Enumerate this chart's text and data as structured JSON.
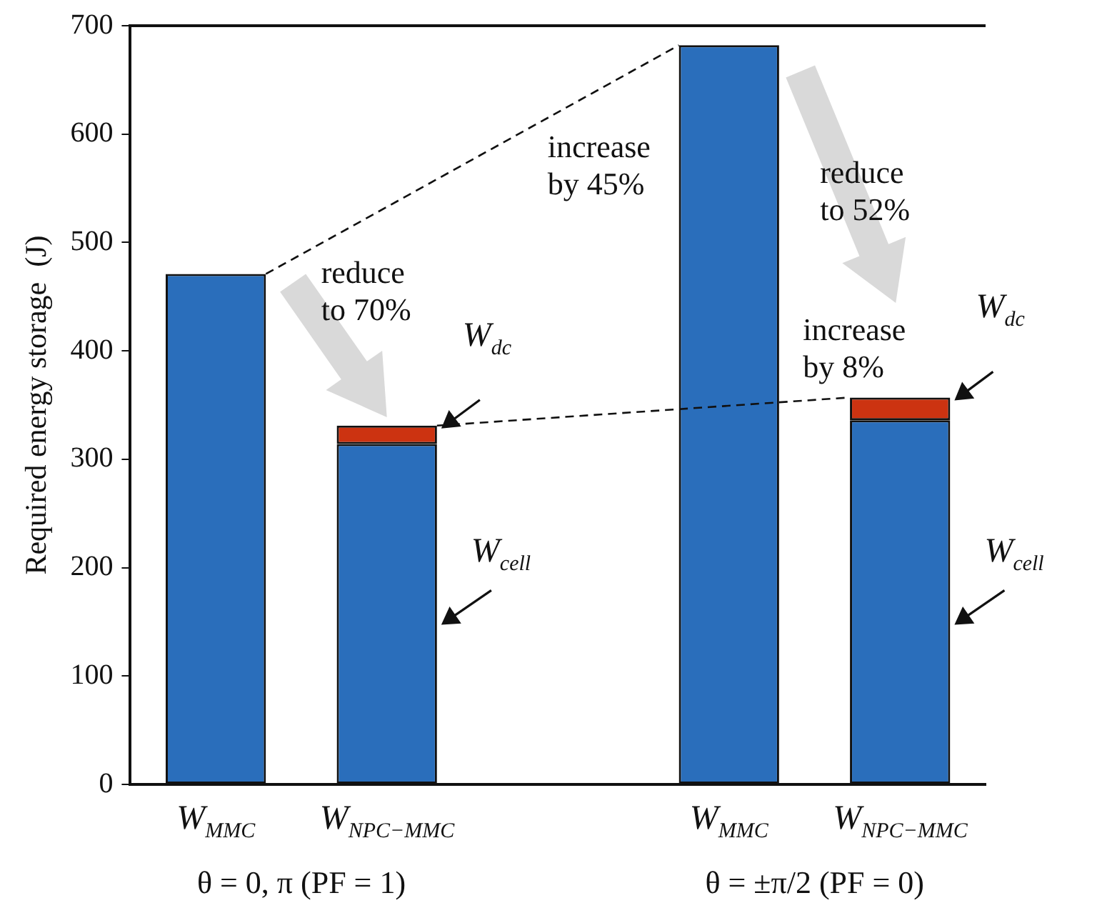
{
  "chart_data": {
    "type": "bar",
    "stacked": true,
    "ylabel": "Required energy storage  (J)",
    "categories": [
      "W$_{MMC}$",
      "W$_{NPC−MMC}$",
      null,
      "W$_{MMC}$",
      "W$_{NPC−MMC}$"
    ],
    "series": [
      {
        "name": "W$_{cell}$",
        "color": "#2a6ebb",
        "values": [
          471,
          314,
          0,
          682,
          336
        ]
      },
      {
        "name": "W$_{dc}$",
        "color": "#cc3311",
        "values": [
          0,
          17,
          0,
          0,
          21
        ]
      }
    ],
    "ylim": [
      0,
      700
    ],
    "yticks": [
      0,
      100,
      200,
      300,
      400,
      500,
      600,
      700
    ],
    "grid": false,
    "legend": false,
    "annotations": [
      "reduce\nto 70%",
      "increase\nby 45%",
      "reduce\nto 52%",
      "increase\nby 8%",
      "θ = 0, π (PF = 1)",
      "θ = ±π/2 (PF = 0)"
    ]
  }
}
